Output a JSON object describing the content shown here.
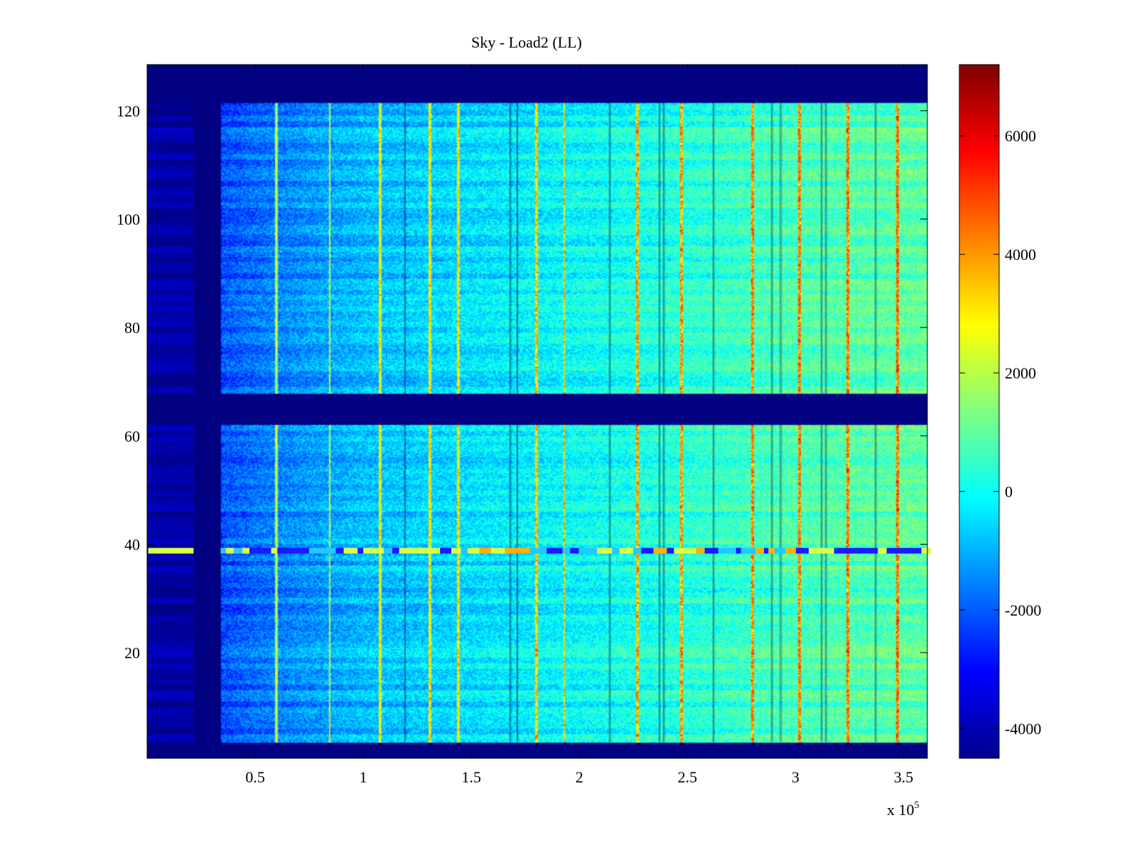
{
  "chart_data": {
    "type": "heatmap",
    "title": "Sky - Load2 (LL)",
    "xlabel": "",
    "ylabel": "",
    "x_multiplier_label": "x 10",
    "x_multiplier_exponent": "5",
    "xlim": [
      0.0,
      3.61
    ],
    "ylim": [
      0.5,
      128.5
    ],
    "xticks": [
      0.5,
      1,
      1.5,
      2,
      2.5,
      3,
      3.5
    ],
    "xtick_labels": [
      "0.5",
      "1",
      "1.5",
      "2",
      "2.5",
      "3",
      "3.5"
    ],
    "yticks": [
      20,
      40,
      60,
      80,
      100,
      120
    ],
    "ytick_labels": [
      "20",
      "40",
      "60",
      "80",
      "100",
      "120"
    ],
    "colormap": "jet",
    "clim": [
      -4500,
      7200
    ],
    "colorbar_ticks": [
      -4000,
      -2000,
      0,
      2000,
      4000,
      6000
    ],
    "colorbar_tick_labels": [
      "-4000",
      "-2000",
      "0",
      "2000",
      "4000",
      "6000"
    ],
    "masked_row_ranges": [
      [
        0.5,
        3.5
      ],
      [
        62.0,
        67.8
      ],
      [
        121.5,
        128.5
      ]
    ],
    "masked_x_ranges": [
      [
        0.22,
        0.34
      ]
    ],
    "low_signal_x_range": [
      0.0,
      0.22
    ],
    "value_gradient": {
      "x": [
        0.34,
        0.5,
        1.0,
        2.0,
        3.0,
        3.61
      ],
      "values": [
        -2200,
        -1800,
        -900,
        -100,
        700,
        900
      ]
    },
    "bright_columns_x": [
      0.6,
      0.845,
      1.08,
      1.31,
      1.44,
      1.8,
      1.93,
      2.27,
      2.47,
      2.8,
      3.02,
      3.24,
      3.47
    ],
    "dark_columns_x": [
      1.19,
      1.68,
      1.71,
      2.14,
      2.37,
      2.39,
      2.62,
      2.89,
      2.93,
      3.12,
      3.14,
      3.37
    ],
    "stripe_row": {
      "y": 38.8,
      "x_range": [
        0.34,
        3.6
      ]
    }
  }
}
